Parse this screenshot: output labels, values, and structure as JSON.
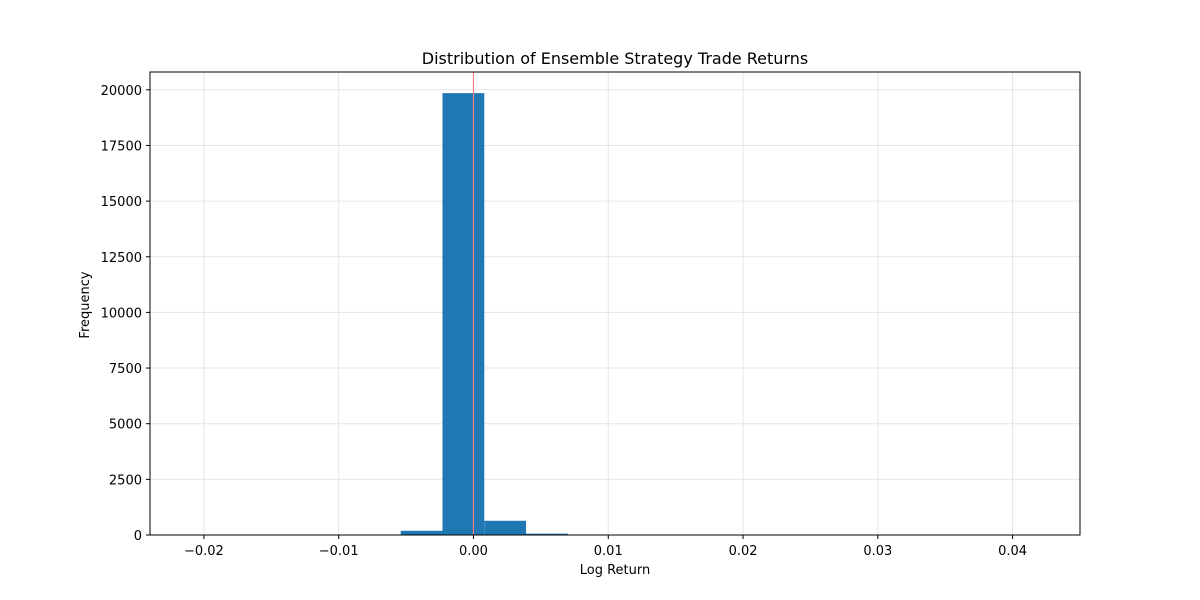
{
  "chart_data": {
    "type": "bar",
    "subtype": "histogram",
    "title": "Distribution of Ensemble Strategy Trade Returns",
    "xlabel": "Log Return",
    "ylabel": "Frequency",
    "xlim": [
      -0.024,
      0.045
    ],
    "ylim": [
      0,
      20800
    ],
    "xticks": [
      -0.02,
      -0.01,
      0.0,
      0.01,
      0.02,
      0.03,
      0.04
    ],
    "xtick_labels": [
      "−0.02",
      "−0.01",
      "0.00",
      "0.01",
      "0.02",
      "0.03",
      "0.04"
    ],
    "yticks": [
      0,
      2500,
      5000,
      7500,
      10000,
      12500,
      15000,
      17500,
      20000
    ],
    "ytick_labels": [
      "0",
      "2500",
      "5000",
      "7500",
      "10000",
      "12500",
      "15000",
      "17500",
      "20000"
    ],
    "bins": [
      {
        "x0": -0.0209,
        "x1": -0.0178,
        "count": 2
      },
      {
        "x0": -0.0178,
        "x1": -0.0147,
        "count": 3
      },
      {
        "x0": -0.0147,
        "x1": -0.0116,
        "count": 5
      },
      {
        "x0": -0.0116,
        "x1": -0.0085,
        "count": 8
      },
      {
        "x0": -0.0085,
        "x1": -0.0054,
        "count": 15
      },
      {
        "x0": -0.0054,
        "x1": -0.0023,
        "count": 190
      },
      {
        "x0": -0.0023,
        "x1": 0.0008,
        "count": 19850
      },
      {
        "x0": 0.0008,
        "x1": 0.0039,
        "count": 640
      },
      {
        "x0": 0.0039,
        "x1": 0.007,
        "count": 60
      },
      {
        "x0": 0.007,
        "x1": 0.0101,
        "count": 15
      },
      {
        "x0": 0.0101,
        "x1": 0.0132,
        "count": 6
      },
      {
        "x0": 0.0132,
        "x1": 0.0163,
        "count": 4
      },
      {
        "x0": 0.0163,
        "x1": 0.0194,
        "count": 3
      },
      {
        "x0": 0.0194,
        "x1": 0.0225,
        "count": 2
      },
      {
        "x0": 0.0225,
        "x1": 0.0256,
        "count": 2
      },
      {
        "x0": 0.0256,
        "x1": 0.0287,
        "count": 1
      },
      {
        "x0": 0.0287,
        "x1": 0.0318,
        "count": 1
      },
      {
        "x0": 0.0318,
        "x1": 0.0349,
        "count": 1
      },
      {
        "x0": 0.0349,
        "x1": 0.038,
        "count": 1
      },
      {
        "x0": 0.038,
        "x1": 0.0411,
        "count": 1
      },
      {
        "x0": 0.0411,
        "x1": 0.042,
        "count": 1
      }
    ],
    "reference_line": {
      "x": 0.0,
      "color": "#f08080"
    },
    "bar_color": "#1f77b4",
    "grid": true,
    "legend": "none"
  }
}
